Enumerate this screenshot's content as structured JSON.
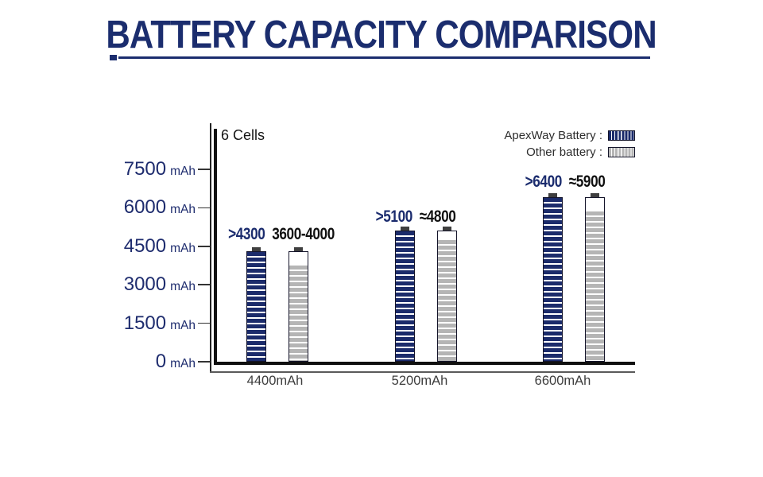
{
  "colors": {
    "navy": "#1b2d6e",
    "bar_navy": "#1b2b6b",
    "bar_gray": "#b5b5b5",
    "axis_black": "#101010",
    "category_text": "#3d3d3d"
  },
  "chart_data": {
    "type": "bar",
    "title": "BATTERY CAPACITY COMPARISON",
    "annotation": "6 Cells",
    "y_axis": {
      "unit": "mAh",
      "ticks": [
        7500,
        6000,
        4500,
        3000,
        1500,
        0
      ],
      "ylim": [
        0,
        7500
      ]
    },
    "categories": [
      "4400mAh",
      "5200mAh",
      "6600mAh"
    ],
    "series": [
      {
        "name": "ApexWay Battery",
        "values": [
          4300,
          5100,
          6400
        ],
        "display_labels": [
          ">4300",
          ">5100",
          ">6400"
        ],
        "color": "#1b2b6b",
        "pattern": "horizontal-stripes"
      },
      {
        "name": "Other battery",
        "values": [
          3800,
          4800,
          5900
        ],
        "display_labels": [
          "3600-4000",
          "≈4800",
          "≈5900"
        ],
        "color": "#b5b5b5",
        "pattern": "horizontal-stripes"
      }
    ],
    "legend": {
      "position": "top-right",
      "entries": [
        {
          "label": "ApexWay Battery :"
        },
        {
          "label": "Other battery :"
        }
      ]
    },
    "grid": false
  }
}
